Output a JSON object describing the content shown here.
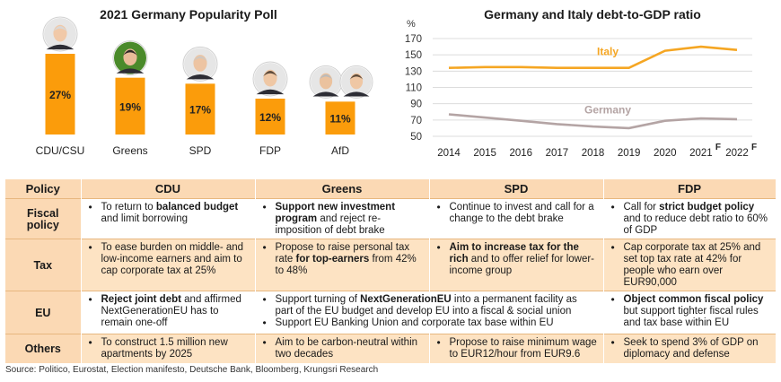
{
  "chart_data": [
    {
      "type": "bar",
      "title": "2021 Germany Popularity Poll",
      "categories": [
        "CDU/CSU",
        "Greens",
        "SPD",
        "FDP",
        "AfD"
      ],
      "values": [
        27,
        19,
        17,
        12,
        11
      ],
      "value_labels": [
        "27%",
        "19%",
        "17%",
        "12%",
        "11%"
      ],
      "bar_color": "#fb9c0b",
      "ylim": [
        0,
        30
      ],
      "portraits": [
        "cdu-leader-portrait",
        "greens-leader-portrait",
        "spd-leader-portrait",
        "fdp-leader-portrait",
        "afd-leaders-portrait"
      ]
    },
    {
      "type": "line",
      "title": "Germany and Italy debt-to-GDP ratio",
      "y_unit": "%",
      "x": [
        "2014",
        "2015",
        "2016",
        "2017",
        "2018",
        "2019",
        "2020",
        "2021",
        "2022"
      ],
      "x_suffix": [
        "",
        "",
        "",
        "",
        "",
        "",
        "",
        "F",
        "F"
      ],
      "yticks": [
        "170",
        "150",
        "130",
        "110",
        "90",
        "70",
        "50"
      ],
      "ylim": [
        50,
        170
      ],
      "grid": true,
      "series": [
        {
          "name": "Italy",
          "color": "#f5a623",
          "values": [
            134,
            135,
            135,
            134,
            134,
            134,
            155,
            160,
            156
          ]
        },
        {
          "name": "Germany",
          "color": "#b4a4a4",
          "values": [
            77,
            73,
            69,
            65,
            62,
            60,
            69,
            72,
            71
          ]
        }
      ]
    }
  ],
  "table": {
    "headers": [
      "Policy",
      "CDU",
      "Greens",
      "SPD",
      "FDP"
    ],
    "rows": [
      {
        "label": "Fiscal policy",
        "cells": [
          [
            [
              "To return to ",
              "balanced budget",
              " and limit borrowing"
            ]
          ],
          [
            [
              "",
              "Support new investment program",
              " and reject re-imposition of debt brake"
            ]
          ],
          [
            [
              "Continue to invest and call for a change to the debt brake",
              "",
              ""
            ]
          ],
          [
            [
              "Call for ",
              "strict budget policy",
              " and to reduce debt ratio to 60% of GDP"
            ]
          ]
        ]
      },
      {
        "label": "Tax",
        "cells": [
          [
            [
              "To ease burden on middle- and low-income earners and aim to cap corporate tax at 25%",
              "",
              ""
            ]
          ],
          [
            [
              "Propose to raise personal tax rate ",
              "for top-earners",
              " from 42% to 48%"
            ]
          ],
          [
            [
              "",
              "Aim to increase tax for the rich",
              " and to offer relief for lower-income group"
            ]
          ],
          [
            [
              "Cap corporate tax at 25% and set top tax rate at 42% for people who earn over EUR90,000",
              "",
              ""
            ]
          ]
        ]
      },
      {
        "label": "EU",
        "cells": [
          [
            [
              "",
              "Reject joint debt",
              " and affirmed NextGenerationEU has to remain one-off"
            ]
          ],
          [
            [
              "Support turning of ",
              "NextGenerationEU",
              " into a permanent facility as part of the EU budget and develop EU into a fiscal & social union"
            ],
            [
              "Support EU Banking Union and corporate tax base within EU",
              "",
              ""
            ]
          ],
          null,
          [
            [
              "",
              "Object common fiscal policy",
              " but support tighter fiscal rules and tax base within EU"
            ]
          ]
        ]
      },
      {
        "label": "Others",
        "cells": [
          [
            [
              "To construct 1.5 million new apartments by 2025",
              "",
              ""
            ]
          ],
          [
            [
              "Aim to be carbon-neutral within two decades",
              "",
              ""
            ]
          ],
          [
            [
              "Propose to raise minimum wage to EUR12/hour from EUR9.6",
              "",
              ""
            ]
          ],
          [
            [
              "Seek to spend 3% of GDP on diplomacy and defense",
              "",
              ""
            ]
          ]
        ]
      }
    ]
  },
  "source": "Source: Politico, Eurostat, Election manifesto, Deutsche Bank, Bloomberg, Krungsri Research"
}
